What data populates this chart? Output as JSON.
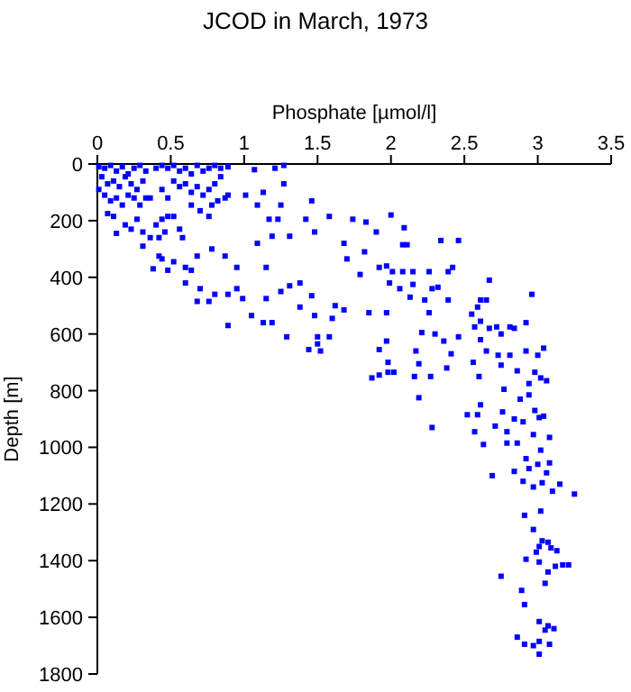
{
  "chart_data": {
    "type": "scatter",
    "title": "JCOD in March, 1973",
    "xlabel": "Phosphate [µmol/l]",
    "ylabel": "Depth [m]",
    "xlim": [
      0,
      3.5
    ],
    "xticks": [
      0,
      0.5,
      1,
      1.5,
      2,
      2.5,
      3,
      3.5
    ],
    "ylim": [
      1800,
      0
    ],
    "yticks": [
      0,
      200,
      400,
      600,
      800,
      1000,
      1200,
      1400,
      1600,
      1800
    ],
    "grid": false,
    "marker": "square",
    "x": [
      0.01,
      0.05,
      0.09,
      0.13,
      0.17,
      0.21,
      0.25,
      0.29,
      0.33,
      0.03,
      0.07,
      0.11,
      0.15,
      0.19,
      0.23,
      0.27,
      0.31,
      0.01,
      0.05,
      0.09,
      0.13,
      0.17,
      0.21,
      0.25,
      0.29,
      0.33,
      0.07,
      0.11,
      0.13,
      0.19,
      0.23,
      0.27,
      0.31,
      0.36,
      0.31,
      0.4,
      0.42,
      0.44,
      0.46,
      0.48,
      0.52,
      0.56,
      0.58,
      0.4,
      0.44,
      0.48,
      0.52,
      0.56,
      0.6,
      0.64,
      0.68,
      0.72,
      0.76,
      0.8,
      0.84,
      0.89,
      0.52,
      0.56,
      0.6,
      0.64,
      0.68,
      0.72,
      0.76,
      0.8,
      0.84,
      0.87,
      0.82,
      0.89,
      0.44,
      0.48,
      0.36,
      0.64,
      0.7,
      0.76,
      0.78,
      0.38,
      0.42,
      0.44,
      0.48,
      0.52,
      0.6,
      0.64,
      0.6,
      0.68,
      0.78,
      0.87,
      0.95,
      0.95,
      0.89,
      0.76,
      0.7,
      0.68,
      0.8,
      0.99,
      1.05,
      1.15,
      1.13,
      1.19,
      0.89,
      1.07,
      1.21,
      1.27,
      1.27,
      1.13,
      1.01,
      1.09,
      1.25,
      1.17,
      1.23,
      1.19,
      1.31,
      1.09,
      1.15,
      1.31,
      1.38,
      1.25,
      1.46,
      1.29,
      1.38,
      1.48,
      1.5,
      1.5,
      1.44,
      1.52,
      1.58,
      1.6,
      1.62,
      1.68,
      1.46,
      1.42,
      1.48,
      1.58,
      1.74,
      1.68,
      1.7,
      1.83,
      1.9,
      2.0,
      2.09,
      2.08,
      2.11,
      2.34,
      2.46,
      1.82,
      1.79,
      1.92,
      1.97,
      2.01,
      2.08,
      2.15,
      2.26,
      2.39,
      2.42,
      1.99,
      2.06,
      2.15,
      2.28,
      2.32,
      2.13,
      2.23,
      2.39,
      2.67,
      2.96,
      2.61,
      2.65,
      2.59,
      2.55,
      2.61,
      2.57,
      2.67,
      2.72,
      2.75,
      2.81,
      2.84,
      2.92,
      2.26,
      2.3,
      2.21,
      2.36,
      2.46,
      2.61,
      1.97,
      1.85,
      1.97,
      1.92,
      1.98,
      1.98,
      1.92,
      2.02,
      1.87,
      2.17,
      2.19,
      2.16,
      2.27,
      2.38,
      2.41,
      2.65,
      2.73,
      2.81,
      2.92,
      3.0,
      3.04,
      2.56,
      2.6,
      2.75,
      2.86,
      2.98,
      3.02,
      3.06,
      2.94,
      2.77,
      2.88,
      2.94,
      2.61,
      2.59,
      2.52,
      2.76,
      2.84,
      2.9,
      2.98,
      3.01,
      3.04,
      2.19,
      2.28,
      2.57,
      2.71,
      2.79,
      2.63,
      2.79,
      2.86,
      2.97,
      3.08,
      3.02,
      2.92,
      3.0,
      3.08,
      2.84,
      2.94,
      3.06,
      2.69,
      2.9,
      3.03,
      2.97,
      3.1,
      3.15,
      3.25,
      2.91,
      3.02,
      2.97,
      3.03,
      3.07,
      3.01,
      3.09,
      3.13,
      2.99,
      2.92,
      3.01,
      3.12,
      3.17,
      3.21,
      3.07,
      3.05,
      2.75,
      2.89,
      2.91,
      3.01,
      3.07,
      3.05,
      3.11,
      2.86,
      2.91,
      2.97,
      3.01,
      3.08,
      3.01
    ],
    "series": [
      {
        "color": "#0000ff",
        "values": [
          10,
          15,
          5,
          25,
          10,
          35,
          15,
          5,
          25,
          45,
          70,
          60,
          80,
          45,
          70,
          90,
          60,
          90,
          110,
          130,
          120,
          145,
          110,
          120,
          145,
          120,
          175,
          185,
          245,
          215,
          230,
          195,
          240,
          260,
          290,
          215,
          260,
          195,
          240,
          185,
          185,
          230,
          260,
          15,
          5,
          15,
          5,
          25,
          15,
          35,
          5,
          25,
          15,
          5,
          15,
          10,
          60,
          80,
          70,
          100,
          80,
          110,
          90,
          70,
          45,
          120,
          130,
          110,
          90,
          120,
          120,
          145,
          165,
          185,
          145,
          370,
          325,
          335,
          375,
          345,
          365,
          375,
          420,
          325,
          300,
          325,
          365,
          440,
          460,
          485,
          440,
          485,
          460,
          475,
          535,
          475,
          560,
          560,
          570,
          20,
          15,
          5,
          70,
          100,
          110,
          145,
          145,
          195,
          195,
          255,
          255,
          280,
          365,
          430,
          420,
          450,
          465,
          610,
          505,
          535,
          610,
          635,
          655,
          660,
          610,
          545,
          500,
          515,
          130,
          195,
          240,
          185,
          195,
          280,
          335,
          205,
          240,
          180,
          225,
          285,
          285,
          270,
          270,
          310,
          390,
          365,
          360,
          380,
          380,
          380,
          380,
          380,
          365,
          420,
          440,
          425,
          440,
          435,
          470,
          480,
          480,
          410,
          460,
          480,
          480,
          505,
          530,
          555,
          575,
          580,
          575,
          600,
          575,
          580,
          560,
          525,
          600,
          595,
          625,
          610,
          620,
          525,
          525,
          625,
          655,
          700,
          735,
          745,
          735,
          755,
          660,
          705,
          750,
          750,
          720,
          670,
          660,
          675,
          675,
          660,
          675,
          650,
          700,
          750,
          710,
          730,
          735,
          755,
          765,
          775,
          795,
          830,
          815,
          850,
          885,
          885,
          875,
          900,
          910,
          870,
          895,
          890,
          825,
          930,
          945,
          925,
          945,
          990,
          985,
          985,
          955,
          965,
          1010,
          1040,
          1060,
          1055,
          1085,
          1075,
          1090,
          1100,
          1120,
          1125,
          1140,
          1155,
          1130,
          1165,
          1240,
          1225,
          1290,
          1330,
          1335,
          1350,
          1355,
          1365,
          1370,
          1395,
          1405,
          1420,
          1415,
          1415,
          1440,
          1480,
          1455,
          1505,
          1555,
          1615,
          1630,
          1645,
          1640,
          1670,
          1695,
          1700,
          1685,
          1695,
          1730
        ]
      }
    ]
  }
}
